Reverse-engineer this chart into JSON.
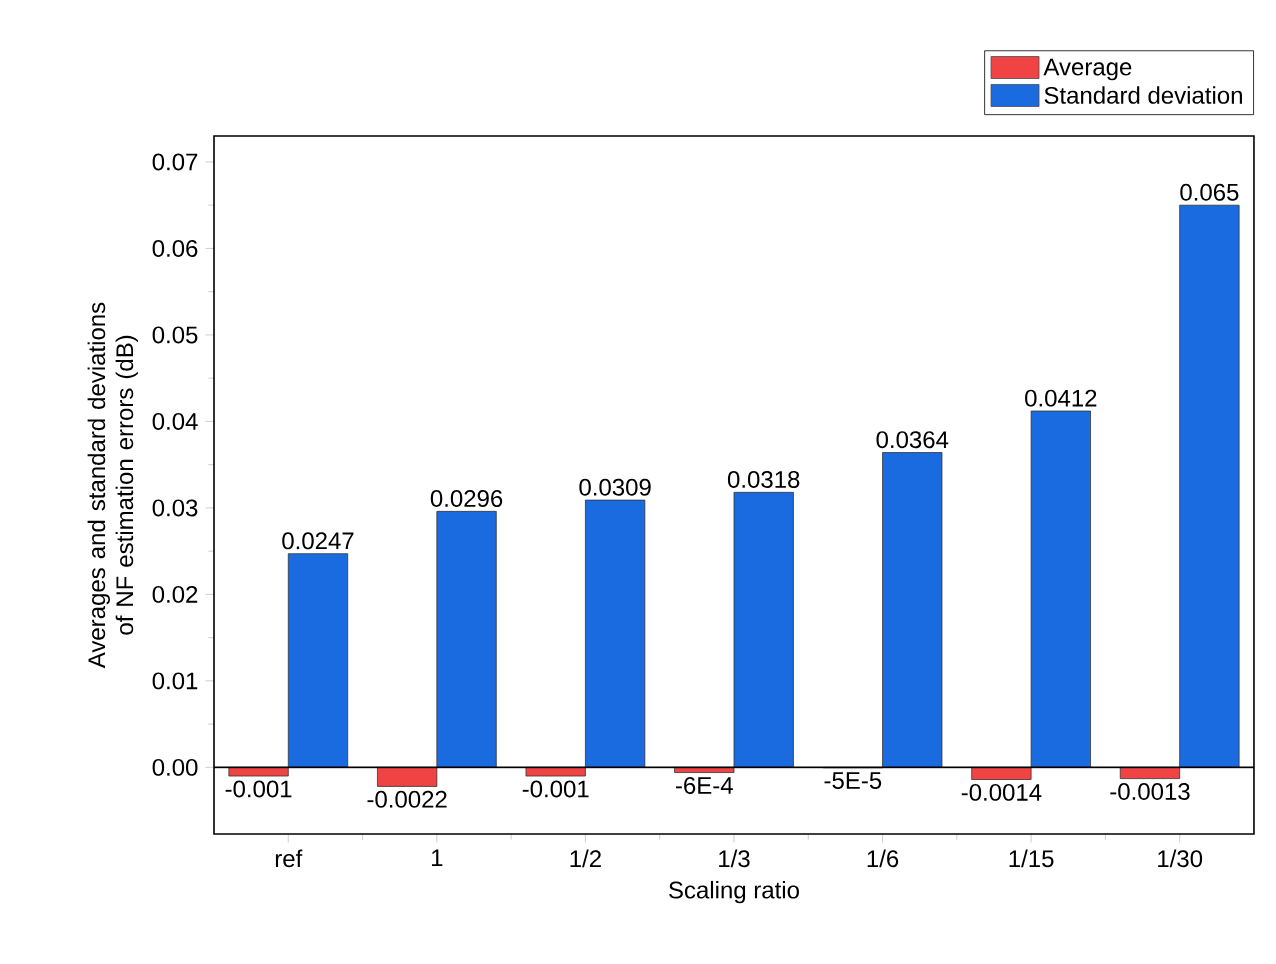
{
  "chart_data": {
    "type": "bar",
    "xlabel": "Scaling ratio",
    "ylabel": "Averages and standard deviations of NF estimation errors (dB)",
    "categories": [
      "ref",
      "1",
      "1/2",
      "1/3",
      "1/6",
      "1/15",
      "1/30"
    ],
    "series": [
      {
        "name": "Average",
        "color": "#f04444",
        "values": [
          -0.001,
          -0.0022,
          -0.001,
          -0.0006,
          -5e-05,
          -0.0014,
          -0.0013
        ],
        "value_labels": [
          "-0.001",
          "-0.0022",
          "-0.001",
          "-6E-4",
          "-5E-5",
          "-0.0014",
          "-0.0013"
        ]
      },
      {
        "name": "Standard deviation",
        "color": "#1a6ae0",
        "values": [
          0.0247,
          0.0296,
          0.0309,
          0.0318,
          0.0364,
          0.0412,
          0.065
        ],
        "value_labels": [
          "0.0247",
          "0.0296",
          "0.0309",
          "0.0318",
          "0.0364",
          "0.0412",
          "0.065"
        ]
      }
    ],
    "ylim": [
      -0.0077,
      0.073
    ],
    "yticks": [
      {
        "value": 0,
        "label": "0.00"
      },
      {
        "value": 0.01,
        "label": "0.01"
      },
      {
        "value": 0.02,
        "label": "0.02"
      },
      {
        "value": 0.03,
        "label": "0.03"
      },
      {
        "value": 0.04,
        "label": "0.04"
      },
      {
        "value": 0.05,
        "label": "0.05"
      },
      {
        "value": 0.06,
        "label": "0.06"
      },
      {
        "value": 0.07,
        "label": "0.07"
      }
    ],
    "legend": "top right"
  }
}
